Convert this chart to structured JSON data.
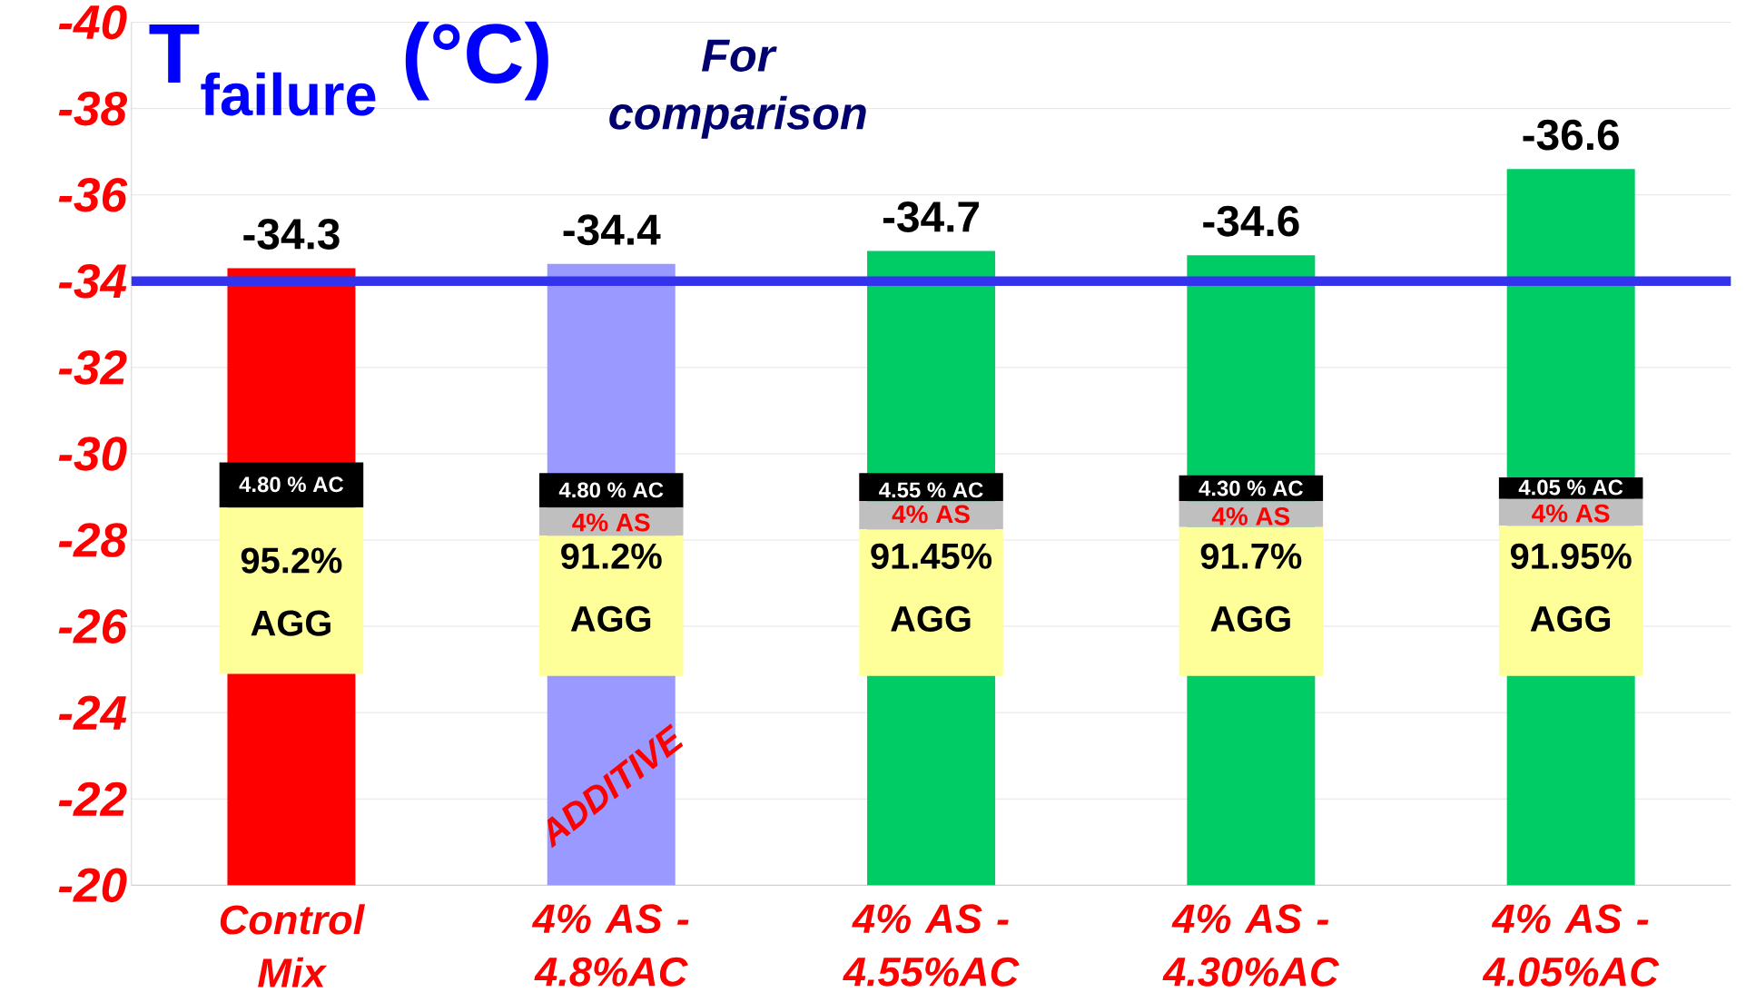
{
  "chart_data": {
    "type": "bar",
    "categories": [
      "Control Mix",
      "4% AS - 4.8%AC",
      "4% AS - 4.55%AC",
      "4% AS - 4.30%AC",
      "4% AS - 4.05%AC"
    ],
    "values": [
      -34.3,
      -34.4,
      -34.7,
      -34.6,
      -36.6
    ],
    "colors": [
      "#ff0000",
      "#9999ff",
      "#00cc66",
      "#00cc66",
      "#00cc66"
    ],
    "ylim": [
      -20,
      -40
    ],
    "yticks": [
      -20,
      -22,
      -24,
      -26,
      -28,
      -30,
      -32,
      -34,
      -36,
      -38,
      -40
    ],
    "grid": "y",
    "data_labels": true,
    "ref_lines": [
      {
        "axis": "y",
        "value": -34,
        "color": "#3333ee"
      }
    ],
    "annotations": [
      "T$_{failure}$ (°C)",
      "For comparison",
      "ADDITIVE",
      "4.80 % AC",
      "95.2% AGG",
      "4.80 % AC",
      "4% AS",
      "91.2% AGG",
      "4.55 % AC",
      "4% AS",
      "91.45% AGG",
      "4.30 % AC",
      "4% AS",
      "91.7% AGG",
      "4.05 % AC",
      "4% AS",
      "91.95% AGG"
    ]
  }
}
